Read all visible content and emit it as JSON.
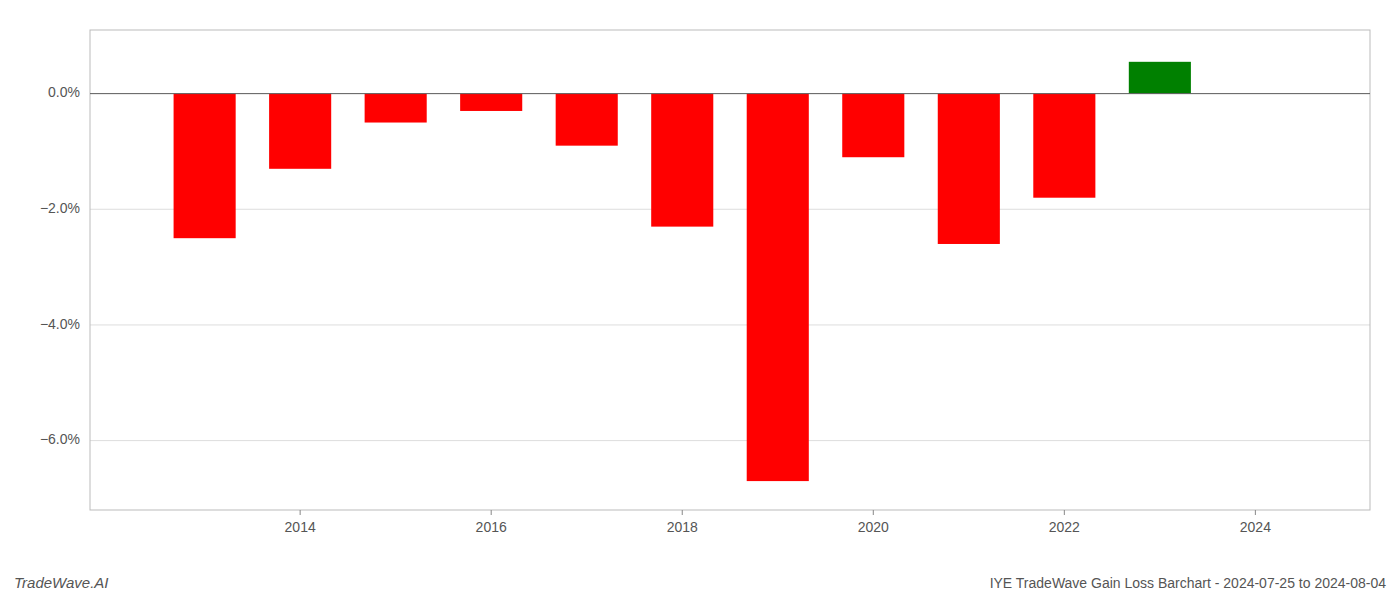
{
  "chart_data": {
    "type": "bar",
    "title": "IYE TradeWave Gain Loss Barchart - 2024-07-25 to 2024-08-04",
    "annotations": [
      "TradeWave.AI"
    ],
    "x": [
      2013,
      2014,
      2015,
      2016,
      2017,
      2018,
      2019,
      2020,
      2021,
      2022,
      2023
    ],
    "values": [
      -2.5,
      -1.3,
      -0.5,
      -0.3,
      -0.9,
      -2.3,
      -6.7,
      -1.1,
      -2.6,
      -1.8,
      0.55
    ],
    "colors": [
      "#ff0000",
      "#ff0000",
      "#ff0000",
      "#ff0000",
      "#ff0000",
      "#ff0000",
      "#ff0000",
      "#ff0000",
      "#ff0000",
      "#ff0000",
      "#008000"
    ],
    "xlim": [
      2011.8,
      2025.2
    ],
    "xticks": [
      2014,
      2016,
      2018,
      2020,
      2022,
      2024
    ],
    "ylim": [
      -7.2,
      1.1
    ],
    "yticks": [
      {
        "value": 0.0,
        "label": "0.0%"
      },
      {
        "value": -2.0,
        "label": "−2.0%"
      },
      {
        "value": -4.0,
        "label": "−4.0%"
      },
      {
        "value": -6.0,
        "label": "−6.0%"
      }
    ],
    "grid": true
  }
}
